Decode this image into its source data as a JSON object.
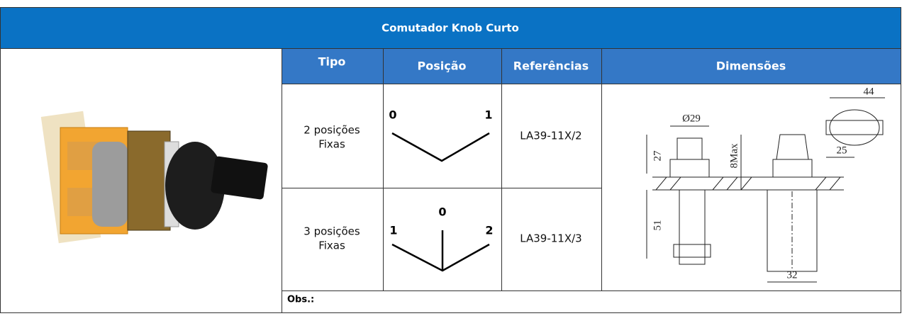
{
  "header": {
    "title": "Comutador Knob Curto"
  },
  "table": {
    "columns": [
      "Tipo",
      "Posição",
      "Referências",
      "Dimensões"
    ],
    "rows": [
      {
        "tipo": [
          "2 posições",
          "Fixas"
        ],
        "posicao": [
          "0",
          "1"
        ],
        "referencia": "LA39-11X/2"
      },
      {
        "tipo": [
          "3 posições",
          "Fixas"
        ],
        "posicao": [
          "1",
          "0",
          "2"
        ],
        "referencia": "LA39-11X/3"
      }
    ],
    "dimensoes": [
      "44",
      "Ø29",
      "27",
      "8Max",
      "25",
      "51",
      "32"
    ],
    "obs": "Obs.:"
  }
}
